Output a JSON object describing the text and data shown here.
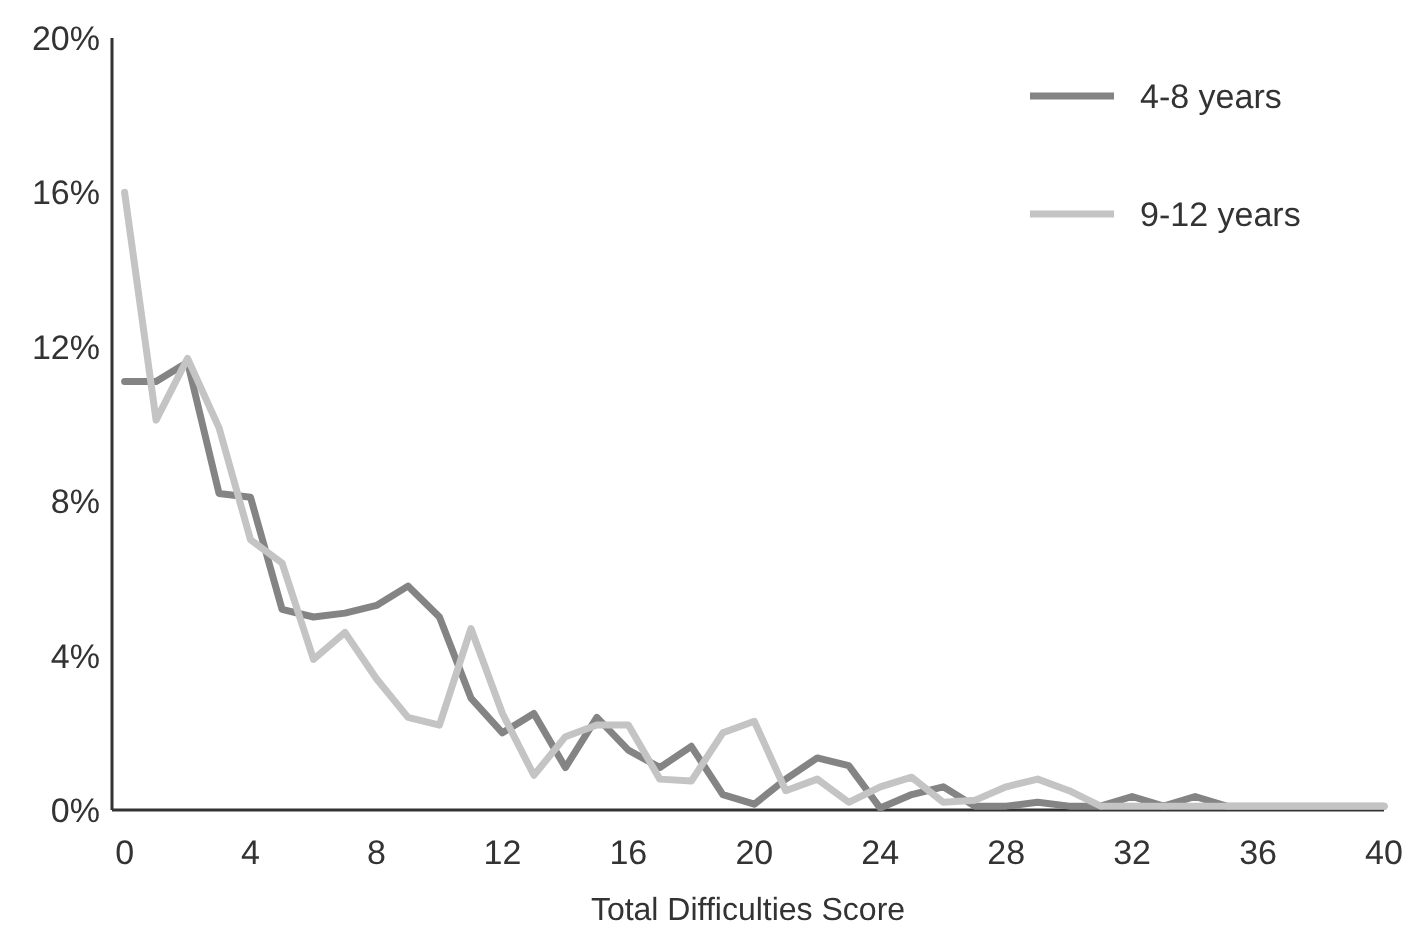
{
  "chart_data": {
    "type": "line",
    "xlabel": "Total Difficulties Score",
    "x": [
      0,
      1,
      2,
      3,
      4,
      5,
      6,
      7,
      8,
      9,
      10,
      11,
      12,
      13,
      14,
      15,
      16,
      17,
      18,
      19,
      20,
      21,
      22,
      23,
      24,
      25,
      26,
      27,
      28,
      29,
      30,
      31,
      32,
      33,
      34,
      35,
      36,
      37,
      38,
      39,
      40
    ],
    "series": [
      {
        "name": "4-8 years",
        "color": "#848484",
        "values": [
          11.1,
          11.1,
          11.6,
          8.2,
          8.1,
          5.2,
          5.0,
          5.1,
          5.3,
          5.8,
          5.0,
          2.9,
          2.0,
          2.5,
          1.1,
          2.4,
          1.55,
          1.1,
          1.65,
          0.4,
          0.15,
          0.8,
          1.35,
          1.15,
          0.05,
          0.4,
          0.6,
          0.1,
          0.1,
          0.2,
          0.1,
          0.1,
          0.35,
          0.1,
          0.35,
          0.1,
          0.1,
          0.1,
          0.1,
          0.1,
          0.1
        ]
      },
      {
        "name": "9-12 years",
        "color": "#c4c4c4",
        "values": [
          16.0,
          10.1,
          11.7,
          9.9,
          7.0,
          6.4,
          3.9,
          4.6,
          3.4,
          2.4,
          2.2,
          4.7,
          2.5,
          0.9,
          1.9,
          2.2,
          2.2,
          0.8,
          0.75,
          2.0,
          2.3,
          0.5,
          0.8,
          0.2,
          0.6,
          0.85,
          0.2,
          0.25,
          0.6,
          0.8,
          0.5,
          0.1,
          0.1,
          0.1,
          0.1,
          0.1,
          0.1,
          0.1,
          0.1,
          0.1,
          0.1
        ]
      }
    ],
    "xlim": [
      -0.4,
      40
    ],
    "xticks": [
      0,
      4,
      8,
      12,
      16,
      20,
      24,
      28,
      32,
      36,
      40
    ],
    "ylim": [
      0,
      20
    ],
    "yticks": [
      {
        "value": 0,
        "label": "0%"
      },
      {
        "value": 4,
        "label": "4%"
      },
      {
        "value": 8,
        "label": "8%"
      },
      {
        "value": 12,
        "label": "12%"
      },
      {
        "value": 16,
        "label": "16%"
      },
      {
        "value": 20,
        "label": "20%"
      }
    ],
    "legend": "top right",
    "grid": false,
    "marker": "none",
    "line_style": "solid"
  }
}
